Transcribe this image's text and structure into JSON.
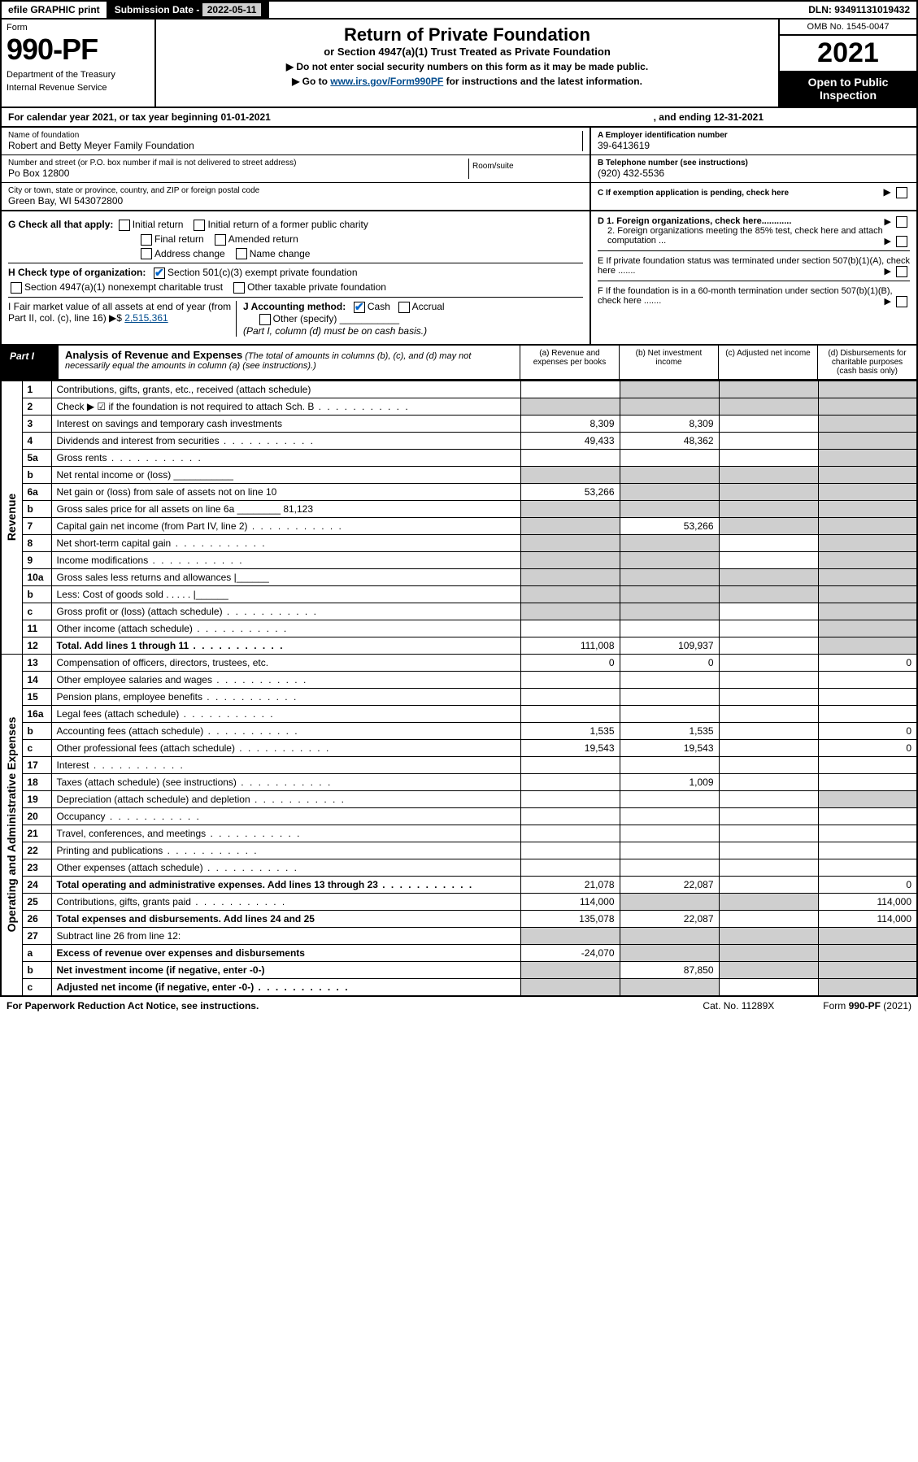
{
  "topbar": {
    "efile": "efile GRAPHIC print",
    "subdate_lbl": "Submission Date - ",
    "subdate": "2022-05-11",
    "dln_lbl": "DLN: ",
    "dln": "93491131019432"
  },
  "header": {
    "formword": "Form",
    "formno": "990-PF",
    "dept": "Department of the Treasury",
    "irs": "Internal Revenue Service",
    "title": "Return of Private Foundation",
    "subtitle": "or Section 4947(a)(1) Trust Treated as Private Foundation",
    "note1": "▶ Do not enter social security numbers on this form as it may be made public.",
    "note2_pre": "▶ Go to ",
    "note2_link": "www.irs.gov/Form990PF",
    "note2_post": " for instructions and the latest information.",
    "omb": "OMB No. 1545-0047",
    "year": "2021",
    "open": "Open to Public Inspection"
  },
  "cal": {
    "text": "For calendar year 2021, or tax year beginning 01-01-2021",
    "ending": ", and ending 12-31-2021"
  },
  "info": {
    "name_lbl": "Name of foundation",
    "name": "Robert and Betty Meyer Family Foundation",
    "addr_lbl": "Number and street (or P.O. box number if mail is not delivered to street address)",
    "addr": "Po Box 12800",
    "room_lbl": "Room/suite",
    "city_lbl": "City or town, state or province, country, and ZIP or foreign postal code",
    "city": "Green Bay, WI  543072800",
    "ein_lbl": "A Employer identification number",
    "ein": "39-6413619",
    "tel_lbl": "B Telephone number (see instructions)",
    "tel": "(920) 432-5536",
    "c": "C If exemption application is pending, check here",
    "d1": "D 1. Foreign organizations, check here............",
    "d2": "2. Foreign organizations meeting the 85% test, check here and attach computation ...",
    "e": "E  If private foundation status was terminated under section 507(b)(1)(A), check here .......",
    "f": "F  If the foundation is in a 60-month termination under section 507(b)(1)(B), check here .......",
    "g": "G Check all that apply:",
    "g_opts": [
      "Initial return",
      "Initial return of a former public charity",
      "Final return",
      "Amended return",
      "Address change",
      "Name change"
    ],
    "h": "H Check type of organization:",
    "h_opts": [
      "Section 501(c)(3) exempt private foundation",
      "Section 4947(a)(1) nonexempt charitable trust",
      "Other taxable private foundation"
    ],
    "i_lbl": "I Fair market value of all assets at end of year (from Part II, col. (c), line 16) ▶$ ",
    "i_val": "2,515,361",
    "j_lbl": "J Accounting method:",
    "j_opts": [
      "Cash",
      "Accrual",
      "Other (specify)"
    ],
    "j_note": "(Part I, column (d) must be on cash basis.)"
  },
  "part1": {
    "label": "Part I",
    "title": "Analysis of Revenue and Expenses",
    "note": "(The total of amounts in columns (b), (c), and (d) may not necessarily equal the amounts in column (a) (see instructions).)",
    "cols": {
      "a": "(a)   Revenue and expenses per books",
      "b": "(b)   Net investment income",
      "c": "(c)   Adjusted net income",
      "d": "(d)   Disbursements for charitable purposes (cash basis only)"
    }
  },
  "sections": {
    "rev": "Revenue",
    "oae": "Operating and Administrative Expenses"
  },
  "lines": [
    {
      "no": "1",
      "desc": "Contributions, gifts, grants, etc., received (attach schedule)",
      "a": "",
      "b": "g",
      "c": "g",
      "d": "g"
    },
    {
      "no": "2",
      "desc": "Check ▶ ☑ if the foundation is not required to attach Sch. B",
      "a": "g",
      "b": "g",
      "c": "g",
      "d": "g",
      "dots": true
    },
    {
      "no": "3",
      "desc": "Interest on savings and temporary cash investments",
      "a": "8,309",
      "b": "8,309",
      "c": "",
      "d": "g"
    },
    {
      "no": "4",
      "desc": "Dividends and interest from securities",
      "a": "49,433",
      "b": "48,362",
      "c": "",
      "d": "g",
      "dots": true
    },
    {
      "no": "5a",
      "desc": "Gross rents",
      "a": "",
      "b": "",
      "c": "",
      "d": "g",
      "dots": true
    },
    {
      "no": "b",
      "desc": "Net rental income or (loss)  ___________",
      "a": "g",
      "b": "g",
      "c": "g",
      "d": "g"
    },
    {
      "no": "6a",
      "desc": "Net gain or (loss) from sale of assets not on line 10",
      "a": "53,266",
      "b": "g",
      "c": "g",
      "d": "g"
    },
    {
      "no": "b",
      "desc": "Gross sales price for all assets on line 6a ________ 81,123",
      "a": "g",
      "b": "g",
      "c": "g",
      "d": "g"
    },
    {
      "no": "7",
      "desc": "Capital gain net income (from Part IV, line 2)",
      "a": "g",
      "b": "53,266",
      "c": "g",
      "d": "g",
      "dots": true
    },
    {
      "no": "8",
      "desc": "Net short-term capital gain",
      "a": "g",
      "b": "g",
      "c": "",
      "d": "g",
      "dots": true
    },
    {
      "no": "9",
      "desc": "Income modifications",
      "a": "g",
      "b": "g",
      "c": "",
      "d": "g",
      "dots": true
    },
    {
      "no": "10a",
      "desc": "Gross sales less returns and allowances  |______",
      "a": "g",
      "b": "g",
      "c": "g",
      "d": "g"
    },
    {
      "no": "b",
      "desc": "Less: Cost of goods sold     . . . . .   |______",
      "a": "g",
      "b": "g",
      "c": "g",
      "d": "g"
    },
    {
      "no": "c",
      "desc": "Gross profit or (loss) (attach schedule)",
      "a": "g",
      "b": "g",
      "c": "",
      "d": "g",
      "dots": true
    },
    {
      "no": "11",
      "desc": "Other income (attach schedule)",
      "a": "",
      "b": "",
      "c": "",
      "d": "g",
      "dots": true
    },
    {
      "no": "12",
      "desc": "Total. Add lines 1 through 11",
      "a": "111,008",
      "b": "109,937",
      "c": "",
      "d": "g",
      "bold": true,
      "dots": true
    }
  ],
  "exp": [
    {
      "no": "13",
      "desc": "Compensation of officers, directors, trustees, etc.",
      "a": "0",
      "b": "0",
      "c": "",
      "d": "0"
    },
    {
      "no": "14",
      "desc": "Other employee salaries and wages",
      "a": "",
      "b": "",
      "c": "",
      "d": "",
      "dots": true
    },
    {
      "no": "15",
      "desc": "Pension plans, employee benefits",
      "a": "",
      "b": "",
      "c": "",
      "d": "",
      "dots": true
    },
    {
      "no": "16a",
      "desc": "Legal fees (attach schedule)",
      "a": "",
      "b": "",
      "c": "",
      "d": "",
      "dots": true
    },
    {
      "no": "b",
      "desc": "Accounting fees (attach schedule)",
      "a": "1,535",
      "b": "1,535",
      "c": "",
      "d": "0",
      "dots": true
    },
    {
      "no": "c",
      "desc": "Other professional fees (attach schedule)",
      "a": "19,543",
      "b": "19,543",
      "c": "",
      "d": "0",
      "dots": true
    },
    {
      "no": "17",
      "desc": "Interest",
      "a": "",
      "b": "",
      "c": "",
      "d": "",
      "dots": true
    },
    {
      "no": "18",
      "desc": "Taxes (attach schedule) (see instructions)",
      "a": "",
      "b": "1,009",
      "c": "",
      "d": "",
      "dots": true
    },
    {
      "no": "19",
      "desc": "Depreciation (attach schedule) and depletion",
      "a": "",
      "b": "",
      "c": "",
      "d": "g",
      "dots": true
    },
    {
      "no": "20",
      "desc": "Occupancy",
      "a": "",
      "b": "",
      "c": "",
      "d": "",
      "dots": true
    },
    {
      "no": "21",
      "desc": "Travel, conferences, and meetings",
      "a": "",
      "b": "",
      "c": "",
      "d": "",
      "dots": true
    },
    {
      "no": "22",
      "desc": "Printing and publications",
      "a": "",
      "b": "",
      "c": "",
      "d": "",
      "dots": true
    },
    {
      "no": "23",
      "desc": "Other expenses (attach schedule)",
      "a": "",
      "b": "",
      "c": "",
      "d": "",
      "dots": true
    },
    {
      "no": "24",
      "desc": "Total operating and administrative expenses. Add lines 13 through 23",
      "a": "21,078",
      "b": "22,087",
      "c": "",
      "d": "0",
      "bold": true,
      "dots": true
    },
    {
      "no": "25",
      "desc": "Contributions, gifts, grants paid",
      "a": "114,000",
      "b": "g",
      "c": "g",
      "d": "114,000",
      "dots": true
    },
    {
      "no": "26",
      "desc": "Total expenses and disbursements. Add lines 24 and 25",
      "a": "135,078",
      "b": "22,087",
      "c": "",
      "d": "114,000",
      "bold": true
    },
    {
      "no": "27",
      "desc": "Subtract line 26 from line 12:",
      "a": "g",
      "b": "g",
      "c": "g",
      "d": "g"
    },
    {
      "no": "a",
      "desc": "Excess of revenue over expenses and disbursements",
      "a": "-24,070",
      "b": "g",
      "c": "g",
      "d": "g",
      "bold": true
    },
    {
      "no": "b",
      "desc": "Net investment income (if negative, enter -0-)",
      "a": "g",
      "b": "87,850",
      "c": "g",
      "d": "g",
      "bold": true
    },
    {
      "no": "c",
      "desc": "Adjusted net income (if negative, enter -0-)",
      "a": "g",
      "b": "g",
      "c": "",
      "d": "g",
      "bold": true,
      "dots": true
    }
  ],
  "footer": {
    "pra": "For Paperwork Reduction Act Notice, see instructions.",
    "cat": "Cat. No. 11289X",
    "form": "Form 990-PF (2021)"
  }
}
